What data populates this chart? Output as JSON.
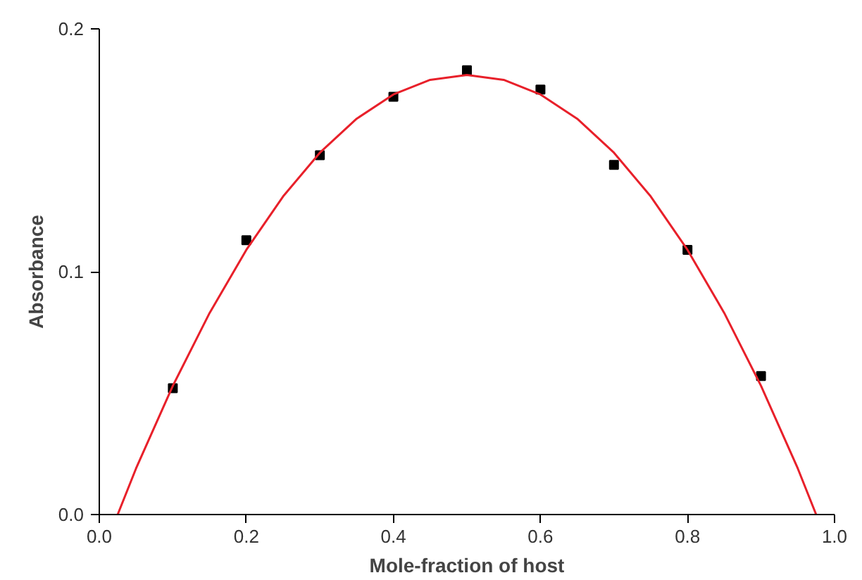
{
  "chart_data": {
    "type": "scatter",
    "xlabel": "Mole-fraction of host",
    "ylabel": "Absorbance",
    "xlim": [
      0.0,
      1.0
    ],
    "ylim": [
      0.0,
      0.2
    ],
    "xticks": [
      {
        "value": 0.0,
        "label": "0.0"
      },
      0.2,
      0.4,
      0.6,
      0.8,
      {
        "value": 1.0,
        "label": "1.0"
      }
    ],
    "yticks": [
      {
        "value": 0.0,
        "label": "0.0"
      },
      0.1,
      0.2
    ],
    "grid": false,
    "x": [
      0.1,
      0.2,
      0.3,
      0.4,
      0.5,
      0.6,
      0.7,
      0.8,
      0.9
    ],
    "series": [
      {
        "color": "#000000",
        "marker": "square",
        "values": [
          0.052,
          0.113,
          0.148,
          0.172,
          0.183,
          0.175,
          0.144,
          0.109,
          0.057
        ]
      },
      {
        "type": "line",
        "color": "#e8202a",
        "line_style": "solid",
        "x": [
          0.025,
          0.05,
          0.1,
          0.15,
          0.2,
          0.25,
          0.3,
          0.35,
          0.4,
          0.45,
          0.5,
          0.55,
          0.6,
          0.65,
          0.7,
          0.75,
          0.8,
          0.85,
          0.9,
          0.95,
          0.975
        ],
        "values": [
          0.0,
          0.019,
          0.053,
          0.083,
          0.109,
          0.131,
          0.149,
          0.163,
          0.173,
          0.179,
          0.181,
          0.179,
          0.173,
          0.163,
          0.149,
          0.131,
          0.109,
          0.083,
          0.053,
          0.019,
          0.0
        ]
      }
    ]
  }
}
